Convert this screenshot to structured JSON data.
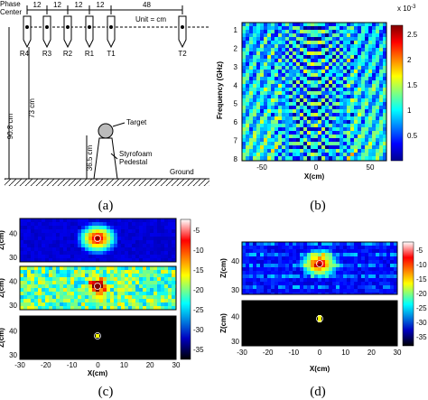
{
  "panel_a": {
    "phase_center": "Phase Center",
    "spacings": [
      "12",
      "12",
      "12",
      "12",
      "48"
    ],
    "unit": "Unit = cm",
    "antennas": [
      "R4",
      "R3",
      "R2",
      "R1",
      "T1",
      "T2"
    ],
    "heights": [
      "90.8 cm",
      "73 cm",
      "36.5 cm"
    ],
    "target": "Target",
    "pedestal": "Styrofoam Pedestal",
    "ground": "Ground",
    "caption": "(a)"
  },
  "panel_b": {
    "y_label": "Frequency (GHz)",
    "yticks": [
      1,
      2,
      3,
      4,
      5,
      6,
      7,
      8
    ],
    "x_label": "X(cm)",
    "xticks": [
      -50,
      0,
      50
    ],
    "colorbar_ticks": [
      0.5,
      1,
      1.5,
      2,
      2.5
    ],
    "colorbar_scale": "x 10",
    "colorbar_exponent": "-3",
    "caption": "(b)"
  },
  "panel_c": {
    "y_label": "Z(cm)",
    "yticks": [
      30,
      40
    ],
    "x_label": "X(cm)",
    "xticks": [
      -30,
      -20,
      -10,
      0,
      10,
      20,
      30
    ],
    "colorbar_ticks": [
      -5,
      -10,
      -15,
      -20,
      -25,
      -30,
      -35
    ],
    "caption": "(c)"
  },
  "panel_d": {
    "y_label": "Z(cm)",
    "yticks": [
      30,
      40
    ],
    "x_label": "X(cm)",
    "xticks": [
      -30,
      -20,
      -10,
      0,
      10,
      20,
      30
    ],
    "colorbar_ticks": [
      -5,
      -10,
      -15,
      -20,
      -25,
      -30,
      -35
    ],
    "caption": "(d)"
  }
}
